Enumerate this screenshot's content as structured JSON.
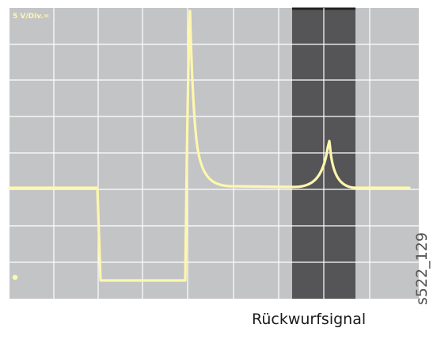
{
  "scope": {
    "scale_label": "5 V/Div.=",
    "background_color": "#c3c4c6",
    "grid_color": "#ffffff",
    "trace_color": "#fff7ad",
    "highlight_color": "#555557",
    "marker_color": "#fff7ad"
  },
  "labels": {
    "reflection_signal": "Rückwurfsignal",
    "figure_id": "s522_129"
  }
}
